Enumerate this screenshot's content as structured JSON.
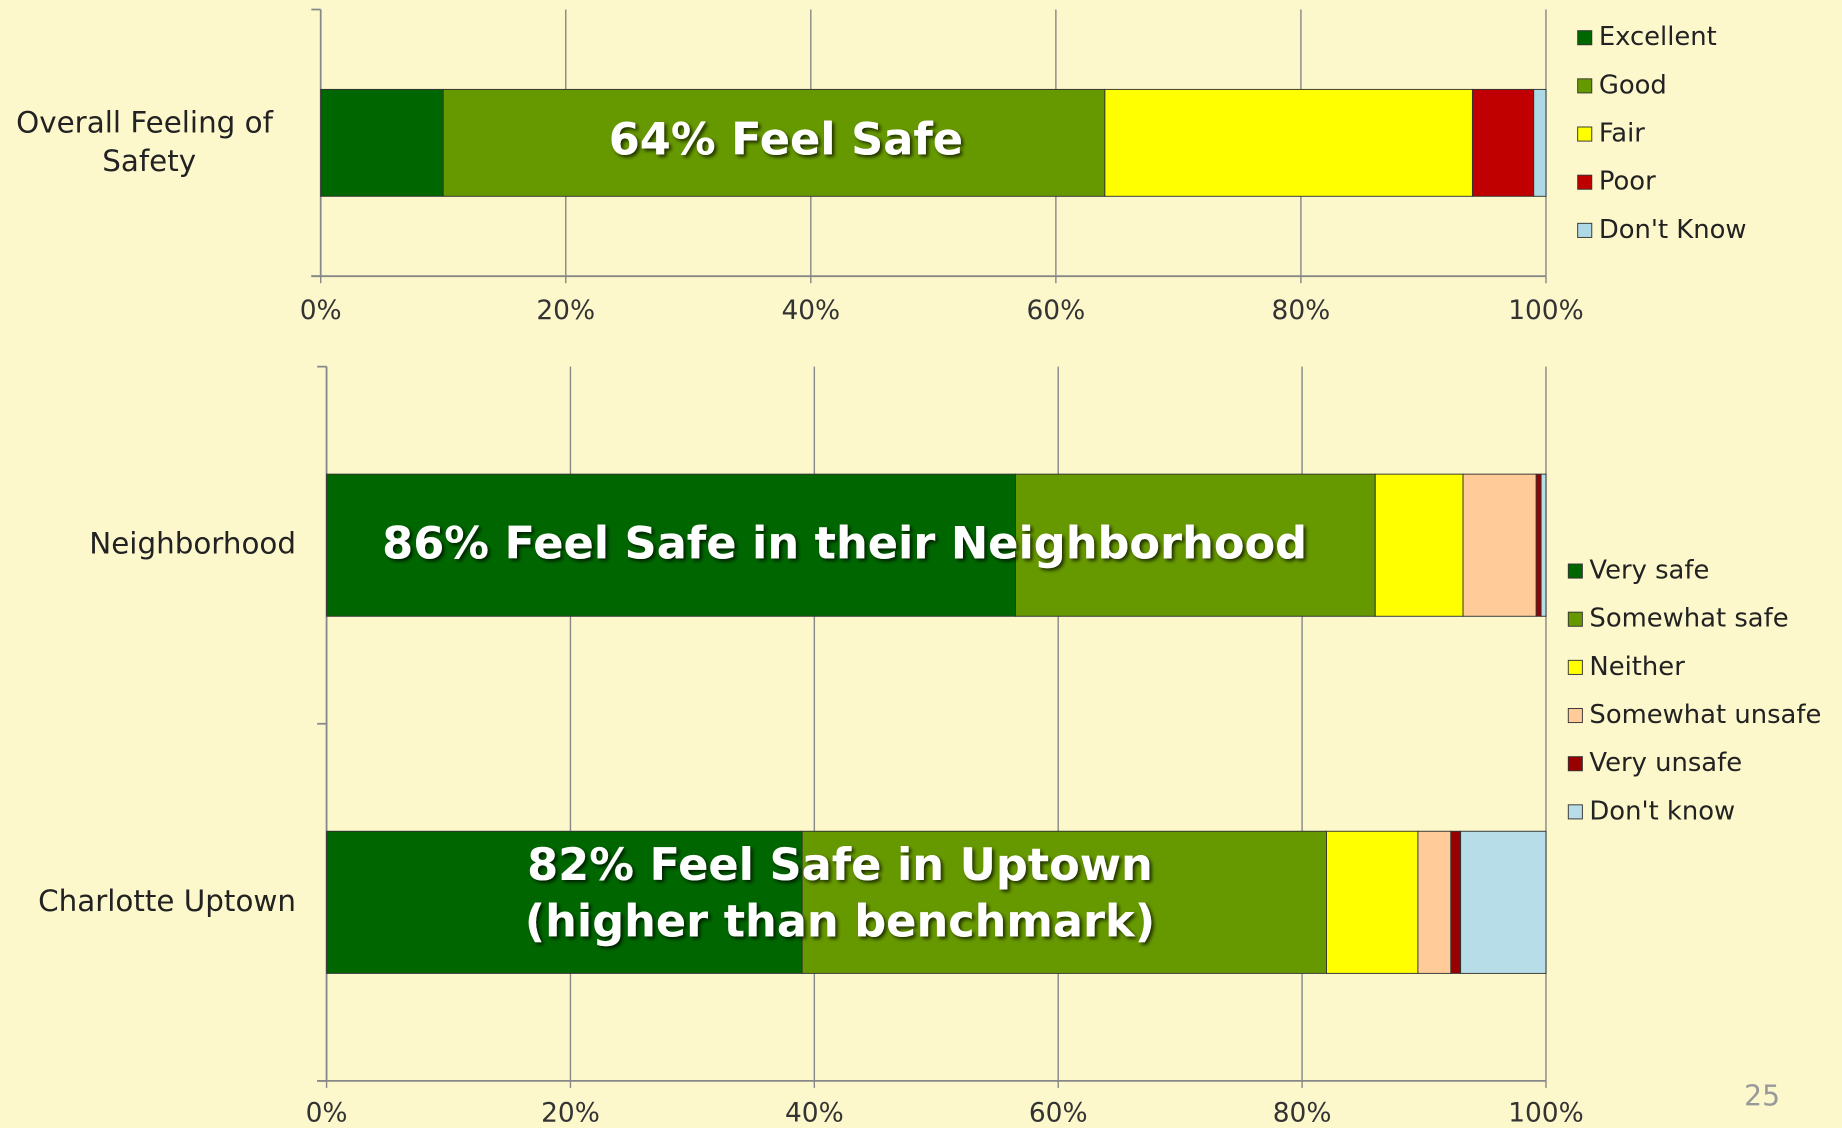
{
  "chart_data": [
    {
      "type": "stacked_barh",
      "categories": [
        "Overall Feeling of Safety"
      ],
      "series": [
        {
          "name": "Excellent",
          "color": "#006600",
          "values": [
            10
          ]
        },
        {
          "name": "Good",
          "color": "#669900",
          "values": [
            54
          ]
        },
        {
          "name": "Fair",
          "color": "#ffff00",
          "values": [
            30
          ]
        },
        {
          "name": "Poor",
          "color": "#c00000",
          "values": [
            5
          ]
        },
        {
          "name": "Don't Know",
          "color": "#add8e6",
          "values": [
            1
          ]
        }
      ],
      "annotations": [
        [
          "64% Feel Safe"
        ]
      ],
      "xlim": [
        0,
        100
      ],
      "xticks": [
        {
          "value": 0,
          "label": "0%"
        },
        {
          "value": 20,
          "label": "20%"
        },
        {
          "value": 40,
          "label": "40%"
        },
        {
          "value": 60,
          "label": "60%"
        },
        {
          "value": 80,
          "label": "80%"
        },
        {
          "value": 100,
          "label": "100%"
        }
      ],
      "grid": true,
      "legend": "right"
    },
    {
      "type": "stacked_barh",
      "categories": [
        "Neighborhood",
        "Charlotte Uptown"
      ],
      "series": [
        {
          "name": "Very safe",
          "color": "#006600",
          "values": [
            56.5,
            39
          ]
        },
        {
          "name": "Somewhat safe",
          "color": "#669900",
          "values": [
            29.5,
            43
          ]
        },
        {
          "name": "Neither",
          "color": "#ffff00",
          "values": [
            7.2,
            7.5
          ]
        },
        {
          "name": "Somewhat unsafe",
          "color": "#ffcc99",
          "values": [
            6,
            2.7
          ]
        },
        {
          "name": "Very unsafe",
          "color": "#990000",
          "values": [
            0.4,
            0.8
          ]
        },
        {
          "name": "Don't know",
          "color": "#b7dde8",
          "values": [
            0.4,
            7
          ]
        }
      ],
      "annotations": [
        [
          "86% Feel Safe in their Neighborhood"
        ],
        [
          "82% Feel Safe in Uptown",
          "(higher than benchmark)"
        ]
      ],
      "xlim": [
        0,
        100
      ],
      "xticks": [
        {
          "value": 0,
          "label": "0%"
        },
        {
          "value": 20,
          "label": "20%"
        },
        {
          "value": 40,
          "label": "40%"
        },
        {
          "value": 60,
          "label": "60%"
        },
        {
          "value": 80,
          "label": "80%"
        },
        {
          "value": 100,
          "label": "100%"
        }
      ],
      "grid": true,
      "legend": "right"
    }
  ],
  "page_number": "25"
}
